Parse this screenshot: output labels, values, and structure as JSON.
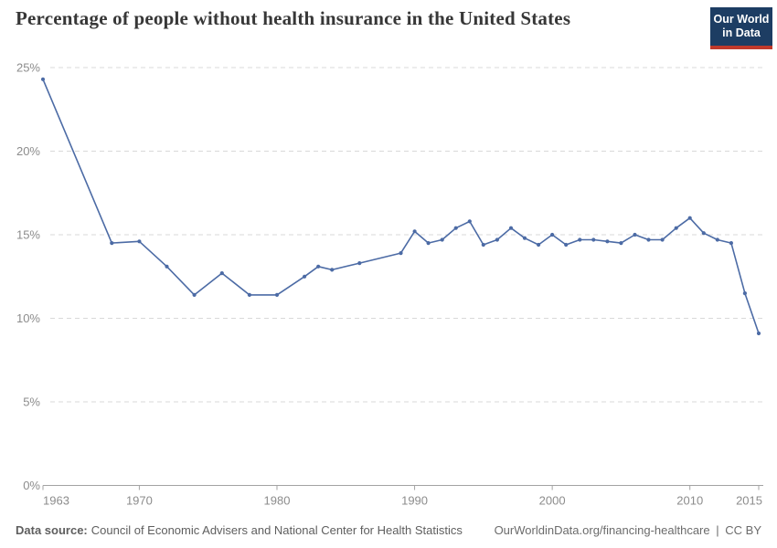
{
  "header": {
    "title": "Percentage of people without health insurance in the United States",
    "logo": {
      "line1": "Our World",
      "line2": "in Data",
      "bg_color": "#1d3d63",
      "bar_color": "#c0392b",
      "text_color": "#ffffff"
    }
  },
  "chart_data": {
    "type": "line",
    "title": "Percentage of people without health insurance in the United States",
    "x": {
      "min": 1963,
      "max": 2015,
      "ticks": [
        1963,
        1970,
        1980,
        1990,
        2000,
        2010,
        2015
      ]
    },
    "y": {
      "min": 0,
      "max": 25,
      "ticks": [
        0,
        5,
        10,
        15,
        20,
        25
      ],
      "tick_suffix": "%"
    },
    "grid": {
      "horizontal": true,
      "style": "dashed",
      "color": "#d9d9d9"
    },
    "axis_color": "#a3a3a3",
    "tick_label_color": "#8c8c8c",
    "legend": "none",
    "series": [
      {
        "name": "Percentage without health insurance",
        "color": "#4c6ba5",
        "marker": "circle",
        "points": [
          [
            1963,
            24.3
          ],
          [
            1968,
            14.5
          ],
          [
            1970,
            14.6
          ],
          [
            1972,
            13.1
          ],
          [
            1974,
            11.4
          ],
          [
            1976,
            12.7
          ],
          [
            1978,
            11.4
          ],
          [
            1980,
            11.4
          ],
          [
            1982,
            12.5
          ],
          [
            1983,
            13.1
          ],
          [
            1984,
            12.9
          ],
          [
            1986,
            13.3
          ],
          [
            1989,
            13.9
          ],
          [
            1990,
            15.2
          ],
          [
            1991,
            14.5
          ],
          [
            1992,
            14.7
          ],
          [
            1993,
            15.4
          ],
          [
            1994,
            15.8
          ],
          [
            1995,
            14.4
          ],
          [
            1996,
            14.7
          ],
          [
            1997,
            15.4
          ],
          [
            1998,
            14.8
          ],
          [
            1999,
            14.4
          ],
          [
            2000,
            15.0
          ],
          [
            2001,
            14.4
          ],
          [
            2002,
            14.7
          ],
          [
            2003,
            14.7
          ],
          [
            2004,
            14.6
          ],
          [
            2005,
            14.5
          ],
          [
            2006,
            15.0
          ],
          [
            2007,
            14.7
          ],
          [
            2008,
            14.7
          ],
          [
            2009,
            15.4
          ],
          [
            2010,
            16.0
          ],
          [
            2011,
            15.1
          ],
          [
            2012,
            14.7
          ],
          [
            2013,
            14.5
          ],
          [
            2014,
            11.5
          ],
          [
            2015,
            9.1
          ]
        ]
      }
    ]
  },
  "footer": {
    "source_label": "Data source:",
    "source_text": "Council of Economic Advisers and National Center for Health Statistics",
    "link": "OurWorldinData.org/financing-healthcare",
    "separator": "|",
    "license": "CC BY"
  }
}
